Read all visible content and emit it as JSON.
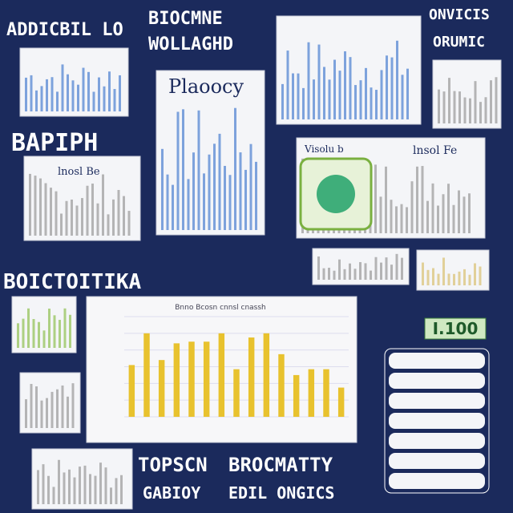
{
  "header": {
    "left": "ADDICBIL LO",
    "center_top": "BIOCMNE",
    "center_bottom": "WOLLAGHD",
    "right_top": "ONVICIS",
    "right_bottom": "ORUMIC"
  },
  "side_titles": {
    "left": "BAPIPH",
    "left_lower": "BOICTOITIKA"
  },
  "panels": {
    "plot_title": "Plaoocy",
    "small_label": "lnosl Be",
    "chart_label_a": "Visolu b",
    "chart_label_b": "lnsol Fe",
    "badge": "I.100"
  },
  "footer": {
    "row1_left": "TOPSCN",
    "row1_right": "BROCMATTY",
    "row2_left": "GABIOY",
    "row2_right": "EDIL ONGICS"
  },
  "main_chart": {
    "title": "Bnno Bcosn cnnsl cnassh",
    "values": [
      62,
      100,
      68,
      88,
      90,
      90,
      100,
      57,
      95,
      100,
      75,
      50,
      57,
      57,
      35
    ],
    "ylim": [
      0,
      120
    ],
    "color": "#e8c22e"
  }
}
